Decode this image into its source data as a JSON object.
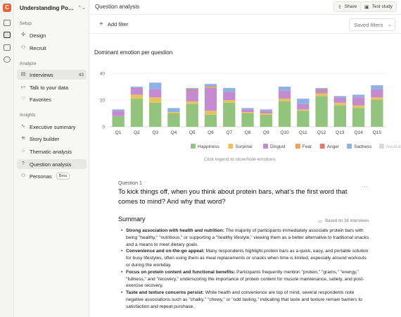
{
  "app": {
    "logo_letter": "C",
    "project_title": "Understanding Power ...",
    "project_chevron": "⌃⌄"
  },
  "sidebar": {
    "sections": [
      {
        "title": "Setup"
      },
      {
        "title": "Analyze"
      },
      {
        "title": "Insights"
      }
    ],
    "items": [
      {
        "label": "Design",
        "icon": "design-icon"
      },
      {
        "label": "Recruit",
        "icon": "people-icon"
      },
      {
        "label": "Interviews",
        "icon": "interviews-icon",
        "count": "43"
      },
      {
        "label": "Talk to your data",
        "icon": "chat-icon"
      },
      {
        "label": "Favorites",
        "icon": "heart-icon"
      },
      {
        "label": "Executive summary",
        "icon": "trend-icon"
      },
      {
        "label": "Story builder",
        "icon": "layers-icon"
      },
      {
        "label": "Thematic analysis",
        "icon": "bulb-icon"
      },
      {
        "label": "Question analysis",
        "icon": "question-icon"
      },
      {
        "label": "Personas",
        "icon": "persona-icon",
        "badge": "Beta"
      }
    ]
  },
  "header": {
    "breadcrumb": "Question analysis",
    "share_label": "Share",
    "test_study_label": "Test study"
  },
  "filters": {
    "add_filter_label": "Add filter",
    "saved_filters_label": "Saved filters"
  },
  "chart_data": {
    "type": "bar",
    "stacked": true,
    "title": "Dominant emotion per question",
    "categories": [
      "Q1",
      "Q2",
      "Q3",
      "Q4",
      "Q5",
      "Q6",
      "Q7",
      "Q8",
      "Q9",
      "Q10",
      "Q11",
      "Q12",
      "Q13",
      "Q14",
      "Q15"
    ],
    "yticks": [
      0,
      20,
      40
    ],
    "ylim": [
      0,
      40
    ],
    "series": [
      {
        "name": "Happiness",
        "color": "#93c47d",
        "values": [
          8,
          21,
          18,
          10,
          17,
          9,
          18,
          10,
          9,
          19,
          12,
          23,
          16,
          14,
          20
        ]
      },
      {
        "name": "Surprise",
        "color": "#e6c361",
        "values": [
          0,
          3,
          4,
          1,
          2,
          3,
          2,
          1,
          1,
          2,
          1,
          2,
          2,
          2,
          2
        ]
      },
      {
        "name": "Disgust",
        "color": "#c58bd0",
        "values": [
          4,
          5,
          6,
          0,
          8,
          17,
          6,
          2,
          2,
          6,
          4,
          2,
          4,
          6,
          6
        ]
      },
      {
        "name": "Fear",
        "color": "#eaa55f",
        "values": [
          0,
          0,
          0,
          0,
          0,
          1,
          0,
          0,
          0,
          0,
          0,
          0,
          0,
          0,
          0
        ]
      },
      {
        "name": "Anger",
        "color": "#e07a6e",
        "values": [
          0,
          0,
          0,
          0,
          1,
          0,
          0,
          0,
          0,
          0,
          0,
          1,
          0,
          0,
          0
        ]
      },
      {
        "name": "Sadness",
        "color": "#8fb1e3",
        "values": [
          1,
          1,
          5,
          3,
          1,
          2,
          3,
          1,
          1,
          3,
          4,
          1,
          1,
          2,
          3
        ]
      },
      {
        "name": "Neutral",
        "color": "#d9d9d9",
        "values": [
          0,
          0,
          0,
          0,
          0,
          0,
          0,
          0,
          0,
          0,
          0,
          0,
          0,
          0,
          0
        ]
      }
    ],
    "legend_position": "bottom",
    "grid": true,
    "legend_hint": "Click legend to show/hide emotions"
  },
  "question": {
    "label": "Question 1",
    "text": "To kick things off, when you think about protein bars, what’s the first word that comes to mind? And why that word?",
    "more_label": "...",
    "summary_title": "Summary",
    "based_on": "Based on 38 interviews",
    "bullets": [
      {
        "head": "Strong association with health and nutrition:",
        "body": " The majority of participants immediately associate protein bars with being \"healthy,\" \"nutritious,\" or supporting a \"healthy lifestyle,\" viewing them as a better alternative to traditional snacks and a means to meet dietary goals."
      },
      {
        "head": "Convenience and on-the-go appeal:",
        "body": " Many respondents highlight protein bars as a quick, easy, and portable solution for busy lifestyles, often using them as meal replacements or snacks when time is limited, especially around workouts or during the workday."
      },
      {
        "head": "Focus on protein content and functional benefits:",
        "body": " Participants frequently mention \"protein,\" \"grams,\" \"energy,\" \"fullness,\" and \"recovery,\" underscoring the importance of protein content for muscle maintenance, satiety, and post-exercise recovery."
      },
      {
        "head": "Taste and texture concerns persist:",
        "body": " While health and convenience are top of mind, several respondents note negative associations such as \"chalky,\" \"chewy,\" or \"odd tasting,\" indicating that taste and texture remain barriers to satisfaction and repeat purchase."
      }
    ]
  }
}
